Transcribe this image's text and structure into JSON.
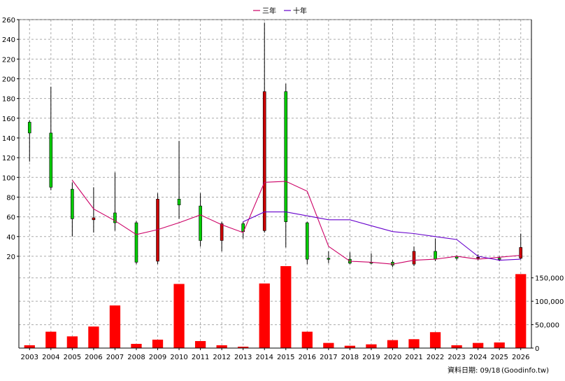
{
  "chart_data": {
    "type": "candlestick+bar",
    "legend": [
      {
        "name": "三年",
        "color": "#cc0066"
      },
      {
        "name": "十年",
        "color": "#6600cc"
      }
    ],
    "legend_position": "top-center",
    "grid": true,
    "price_axis": {
      "ylim": [
        10,
        260
      ],
      "ticks": [
        20,
        40,
        60,
        80,
        100,
        120,
        140,
        160,
        180,
        200,
        220,
        240,
        260
      ]
    },
    "volume_axis": {
      "ylim": [
        0,
        175000
      ],
      "ticks": [
        0,
        50000,
        100000,
        150000
      ],
      "tick_labels": [
        "0",
        "50,000",
        "100,000",
        "150,000"
      ]
    },
    "years": [
      "2003",
      "2004",
      "2005",
      "2006",
      "2007",
      "2008",
      "2009",
      "2010",
      "2011",
      "2012",
      "2013",
      "2014",
      "2015",
      "2016",
      "2017",
      "2018",
      "2019",
      "2020",
      "2021",
      "2022",
      "2023",
      "2024",
      "2025",
      "2026"
    ],
    "candles": [
      {
        "open": 145,
        "close": 156,
        "high": 158,
        "low": 116
      },
      {
        "open": 90,
        "close": 145,
        "high": 192,
        "low": 87
      },
      {
        "open": 58,
        "close": 88,
        "high": 95,
        "low": 40
      },
      {
        "open": 59,
        "close": 57,
        "high": 90,
        "low": 44
      },
      {
        "open": 54,
        "close": 64,
        "high": 105,
        "low": 46
      },
      {
        "open": 14,
        "close": 54,
        "high": 56,
        "low": 12
      },
      {
        "open": 78,
        "close": 15,
        "high": 84,
        "low": 12
      },
      {
        "open": 72,
        "close": 78,
        "high": 137,
        "low": 58
      },
      {
        "open": 36,
        "close": 71,
        "high": 84,
        "low": 30
      },
      {
        "open": 53,
        "close": 36,
        "high": 55,
        "low": 25
      },
      {
        "open": 45,
        "close": 53,
        "high": 55,
        "low": 38
      },
      {
        "open": 187,
        "close": 46,
        "high": 257,
        "low": 44
      },
      {
        "open": 55,
        "close": 187,
        "high": 195,
        "low": 29
      },
      {
        "open": 17,
        "close": 54,
        "high": 55,
        "low": 12
      },
      {
        "open": 17,
        "close": 18,
        "high": 25,
        "low": 13
      },
      {
        "open": 13,
        "close": 17,
        "high": 24,
        "low": 12
      },
      {
        "open": 14,
        "close": 14,
        "high": 23,
        "low": 12
      },
      {
        "open": 11,
        "close": 14,
        "high": 16,
        "low": 9
      },
      {
        "open": 25,
        "close": 12,
        "high": 30,
        "low": 10
      },
      {
        "open": 17,
        "close": 25,
        "high": 38,
        "low": 15
      },
      {
        "open": 18,
        "close": 20,
        "high": 21,
        "low": 16
      },
      {
        "open": 19,
        "close": 18,
        "high": 22,
        "low": 16
      },
      {
        "open": 17,
        "close": 18,
        "high": 20,
        "low": 15
      },
      {
        "open": 29,
        "close": 18,
        "high": 43,
        "low": 17
      }
    ],
    "three_year_ma": [
      null,
      null,
      97,
      68,
      56,
      42,
      47,
      54,
      62,
      52,
      44,
      95,
      96,
      86,
      30,
      15,
      14,
      12,
      16,
      17,
      20,
      17,
      19,
      21
    ],
    "ten_year_ma": [
      null,
      null,
      null,
      null,
      null,
      null,
      null,
      null,
      null,
      null,
      55,
      65,
      65,
      61,
      57,
      57,
      51,
      45,
      43,
      40,
      37,
      20,
      16,
      17
    ],
    "volume": [
      6000,
      35000,
      25000,
      46000,
      91000,
      9000,
      18000,
      137000,
      15000,
      6000,
      3000,
      138000,
      178000,
      35000,
      11000,
      5000,
      8000,
      17000,
      19000,
      34000,
      6000,
      11000,
      12000,
      158000
    ]
  },
  "footer": {
    "note": "資料日期: 09/18",
    "source": "(Goodinfo.tw)"
  }
}
